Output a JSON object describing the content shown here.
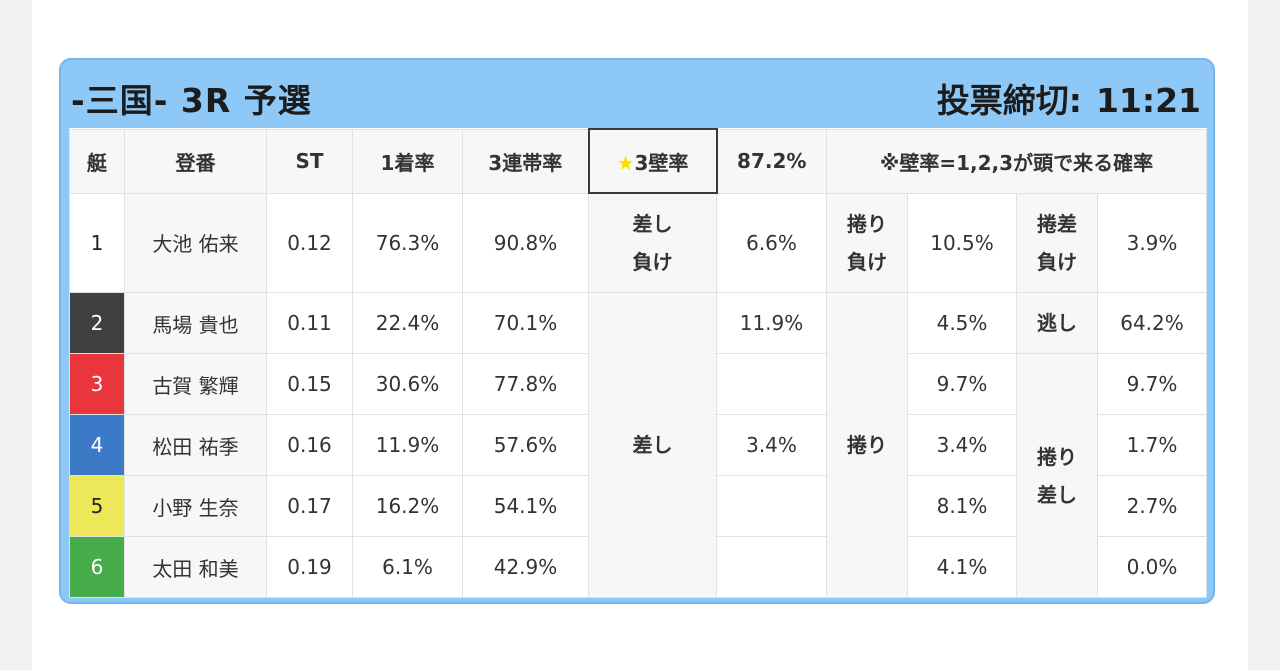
{
  "header": {
    "title": "-三国- 3R 予選",
    "deadline_label": "投票締切:",
    "deadline_time": "11:21"
  },
  "table": {
    "headers": {
      "boat": "艇",
      "reg": "登番",
      "st": "ST",
      "first_rate": "1着率",
      "top3_rate": "3連帯率",
      "wall_rate_label": "3壁率",
      "wall_rate_value": "87.2%",
      "note": "※壁率=1,2,3が頭で来る確率"
    },
    "rows": [
      {
        "boat": "1",
        "name": "大池 佑来",
        "st": "0.12",
        "first": "76.3%",
        "top3": "90.8%"
      },
      {
        "boat": "2",
        "name": "馬場 貴也",
        "st": "0.11",
        "first": "22.4%",
        "top3": "70.1%"
      },
      {
        "boat": "3",
        "name": "古賀 繁輝",
        "st": "0.15",
        "first": "30.6%",
        "top3": "77.8%"
      },
      {
        "boat": "4",
        "name": "松田 祐季",
        "st": "0.16",
        "first": "11.9%",
        "top3": "57.6%"
      },
      {
        "boat": "5",
        "name": "小野 生奈",
        "st": "0.17",
        "first": "16.2%",
        "top3": "54.1%"
      },
      {
        "boat": "6",
        "name": "太田 和美",
        "st": "0.19",
        "first": "6.1%",
        "top3": "42.9%"
      }
    ],
    "kimarite": {
      "sashi_make_line1": "差し",
      "sashi_make_line2": "負け",
      "sashi_make_value": "6.6%",
      "makuri_make_line1": "捲り",
      "makuri_make_line2": "負け",
      "makuri_make_value": "10.5%",
      "makurisashi_make_line1": "捲差",
      "makurisashi_make_line2": "負け",
      "makurisashi_make_value": "3.9%",
      "nige_label": "逃し",
      "nige_value": "64.2%",
      "sashi_label": "差し",
      "sashi_value_2": "11.9%",
      "sashi_value_4": "3.4%",
      "makuri_label": "捲り",
      "makuri_values": [
        "4.5%",
        "9.7%",
        "3.4%",
        "8.1%",
        "4.1%"
      ],
      "makurisashi_label_line1": "捲り",
      "makurisashi_label_line2": "差し",
      "makurisashi_values": [
        "9.7%",
        "1.7%",
        "2.7%",
        "0.0%"
      ]
    }
  },
  "colors": {
    "card_background": "#8ec8f6",
    "wall_header": "#f1a72a",
    "boat_1": "#ffffff",
    "boat_2": "#404040",
    "boat_3": "#e9363d",
    "boat_4": "#3c7ac8",
    "boat_5": "#ede85a",
    "boat_6": "#47ad4a"
  }
}
